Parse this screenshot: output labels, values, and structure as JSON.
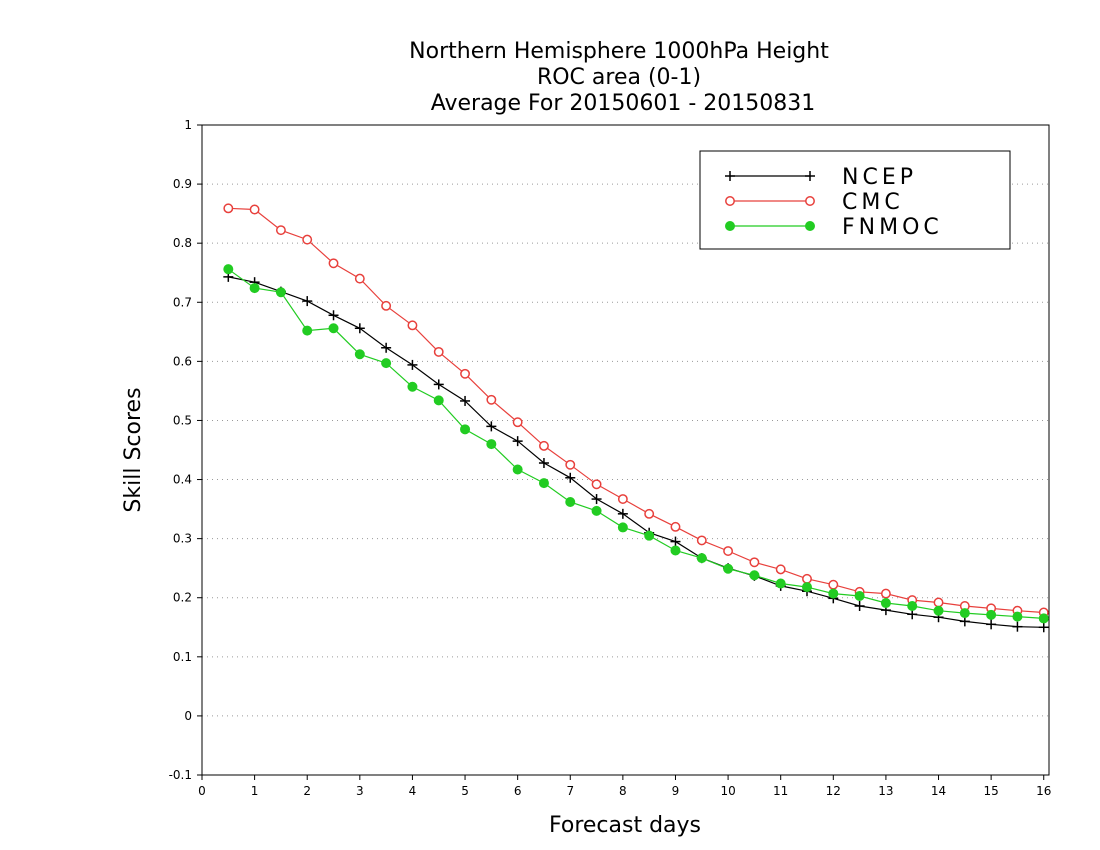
{
  "chart_data": {
    "type": "line",
    "title_lines": [
      "Northern Hemisphere 1000hPa Height",
      "ROC area (0-1)",
      "Average For 20150601 - 20150831"
    ],
    "xlabel": "Forecast days",
    "ylabel": "Skill Scores",
    "xlim": [
      0,
      16.1
    ],
    "ylim": [
      -0.1,
      1
    ],
    "xticks": [
      "0",
      "1",
      "2",
      "3",
      "4",
      "5",
      "6",
      "7",
      "8",
      "9",
      "10",
      "11",
      "12",
      "13",
      "14",
      "15",
      "16"
    ],
    "yticks": [
      "-0.1",
      "0",
      "0.1",
      "0.2",
      "0.3",
      "0.4",
      "0.5",
      "0.6",
      "0.7",
      "0.8",
      "0.9",
      "1"
    ],
    "grid": "horizontal dotted",
    "legend_position": "top-right",
    "x": [
      0.5,
      1,
      1.5,
      2,
      2.5,
      3,
      3.5,
      4,
      4.5,
      5,
      5.5,
      6,
      6.5,
      7,
      7.5,
      8,
      8.5,
      9,
      9.5,
      10,
      10.5,
      11,
      11.5,
      12,
      12.5,
      13,
      13.5,
      14,
      14.5,
      15,
      15.5,
      16
    ],
    "series": [
      {
        "name": "NCEP",
        "color": "#000000",
        "marker": "plus",
        "values": [
          0.743,
          0.734,
          0.718,
          0.702,
          0.678,
          0.656,
          0.623,
          0.594,
          0.561,
          0.533,
          0.49,
          0.465,
          0.428,
          0.403,
          0.367,
          0.342,
          0.31,
          0.295,
          0.267,
          0.25,
          0.237,
          0.22,
          0.211,
          0.199,
          0.186,
          0.179,
          0.172,
          0.167,
          0.16,
          0.155,
          0.151,
          0.15
        ]
      },
      {
        "name": "CMC",
        "color": "#e8403c",
        "marker": "open-circle",
        "values": [
          0.859,
          0.857,
          0.822,
          0.806,
          0.766,
          0.74,
          0.694,
          0.661,
          0.616,
          0.579,
          0.535,
          0.497,
          0.457,
          0.425,
          0.392,
          0.367,
          0.342,
          0.32,
          0.297,
          0.279,
          0.26,
          0.248,
          0.232,
          0.222,
          0.21,
          0.207,
          0.196,
          0.192,
          0.186,
          0.182,
          0.178,
          0.175
        ]
      },
      {
        "name": "FNMOC",
        "color": "#22cc22",
        "marker": "filled-circle",
        "values": [
          0.756,
          0.724,
          0.717,
          0.652,
          0.656,
          0.612,
          0.597,
          0.557,
          0.534,
          0.485,
          0.46,
          0.417,
          0.394,
          0.362,
          0.347,
          0.319,
          0.305,
          0.28,
          0.267,
          0.249,
          0.238,
          0.224,
          0.218,
          0.207,
          0.203,
          0.191,
          0.186,
          0.178,
          0.174,
          0.171,
          0.168,
          0.165
        ]
      }
    ]
  }
}
